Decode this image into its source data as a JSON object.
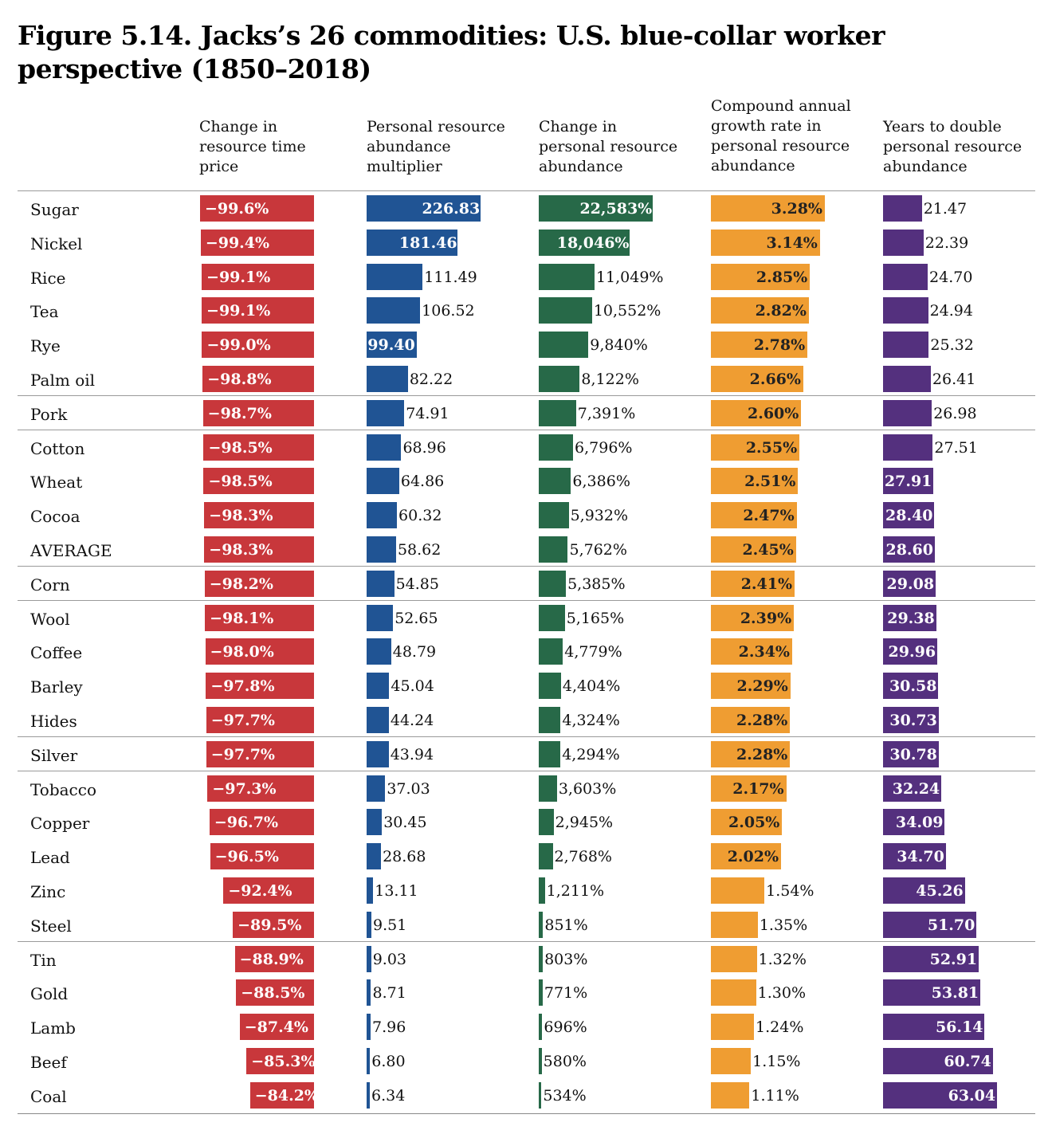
{
  "title": "Figure 5.14. Jacks’s 26 commodities: U.S. blue-collar worker perspective (1850–2018)",
  "colors": {
    "time_price": "#c8373b",
    "multiplier": "#205494",
    "abundance": "#276948",
    "cagr": "#ef9d32",
    "years": "#54307e"
  },
  "chart_data": {
    "type": "table",
    "columns": [
      {
        "key": "time_price",
        "header": "Change in resource time price"
      },
      {
        "key": "multiplier",
        "header": "Personal resource abundance multiplier"
      },
      {
        "key": "abundance",
        "header": "Change in personal resource abundance"
      },
      {
        "key": "cagr",
        "header": "Compound annual growth rate in personal resource abundance"
      },
      {
        "key": "years",
        "header": "Years to double personal resource abundance"
      }
    ],
    "rows": [
      {
        "label": "Sugar",
        "time_price": -99.6,
        "multiplier": 226.83,
        "abundance": 22583,
        "cagr": 3.28,
        "years": 21.47
      },
      {
        "label": "Nickel",
        "time_price": -99.4,
        "multiplier": 181.46,
        "abundance": 18046,
        "cagr": 3.14,
        "years": 22.39
      },
      {
        "label": "Rice",
        "time_price": -99.1,
        "multiplier": 111.49,
        "abundance": 11049,
        "cagr": 2.85,
        "years": 24.7
      },
      {
        "label": "Tea",
        "time_price": -99.1,
        "multiplier": 106.52,
        "abundance": 10552,
        "cagr": 2.82,
        "years": 24.94
      },
      {
        "label": "Rye",
        "time_price": -99.0,
        "multiplier": 99.4,
        "abundance": 9840,
        "cagr": 2.78,
        "years": 25.32
      },
      {
        "label": "Palm oil",
        "time_price": -98.8,
        "multiplier": 82.22,
        "abundance": 8122,
        "cagr": 2.66,
        "years": 26.41
      },
      {
        "label": "Pork",
        "time_price": -98.7,
        "multiplier": 74.91,
        "abundance": 7391,
        "cagr": 2.6,
        "years": 26.98
      },
      {
        "label": "Cotton",
        "time_price": -98.5,
        "multiplier": 68.96,
        "abundance": 6796,
        "cagr": 2.55,
        "years": 27.51
      },
      {
        "label": "Wheat",
        "time_price": -98.5,
        "multiplier": 64.86,
        "abundance": 6386,
        "cagr": 2.51,
        "years": 27.91
      },
      {
        "label": "Cocoa",
        "time_price": -98.3,
        "multiplier": 60.32,
        "abundance": 5932,
        "cagr": 2.47,
        "years": 28.4
      },
      {
        "label": "AVERAGE",
        "time_price": -98.3,
        "multiplier": 58.62,
        "abundance": 5762,
        "cagr": 2.45,
        "years": 28.6
      },
      {
        "label": "Corn",
        "time_price": -98.2,
        "multiplier": 54.85,
        "abundance": 5385,
        "cagr": 2.41,
        "years": 29.08
      },
      {
        "label": "Wool",
        "time_price": -98.1,
        "multiplier": 52.65,
        "abundance": 5165,
        "cagr": 2.39,
        "years": 29.38
      },
      {
        "label": "Coffee",
        "time_price": -98.0,
        "multiplier": 48.79,
        "abundance": 4779,
        "cagr": 2.34,
        "years": 29.96
      },
      {
        "label": "Barley",
        "time_price": -97.8,
        "multiplier": 45.04,
        "abundance": 4404,
        "cagr": 2.29,
        "years": 30.58
      },
      {
        "label": "Hides",
        "time_price": -97.7,
        "multiplier": 44.24,
        "abundance": 4324,
        "cagr": 2.28,
        "years": 30.73
      },
      {
        "label": "Silver",
        "time_price": -97.7,
        "multiplier": 43.94,
        "abundance": 4294,
        "cagr": 2.28,
        "years": 30.78
      },
      {
        "label": "Tobacco",
        "time_price": -97.3,
        "multiplier": 37.03,
        "abundance": 3603,
        "cagr": 2.17,
        "years": 32.24
      },
      {
        "label": "Copper",
        "time_price": -96.7,
        "multiplier": 30.45,
        "abundance": 2945,
        "cagr": 2.05,
        "years": 34.09
      },
      {
        "label": "Lead",
        "time_price": -96.5,
        "multiplier": 28.68,
        "abundance": 2768,
        "cagr": 2.02,
        "years": 34.7
      },
      {
        "label": "Zinc",
        "time_price": -92.4,
        "multiplier": 13.11,
        "abundance": 1211,
        "cagr": 1.54,
        "years": 45.26
      },
      {
        "label": "Steel",
        "time_price": -89.5,
        "multiplier": 9.51,
        "abundance": 851,
        "cagr": 1.35,
        "years": 51.7
      },
      {
        "label": "Tin",
        "time_price": -88.9,
        "multiplier": 9.03,
        "abundance": 803,
        "cagr": 1.32,
        "years": 52.91
      },
      {
        "label": "Gold",
        "time_price": -88.5,
        "multiplier": 8.71,
        "abundance": 771,
        "cagr": 1.3,
        "years": 53.81
      },
      {
        "label": "Lamb",
        "time_price": -87.4,
        "multiplier": 7.96,
        "abundance": 696,
        "cagr": 1.24,
        "years": 56.14
      },
      {
        "label": "Beef",
        "time_price": -85.3,
        "multiplier": 6.8,
        "abundance": 580,
        "cagr": 1.15,
        "years": 60.74
      },
      {
        "label": "Coal",
        "time_price": -84.2,
        "multiplier": 6.34,
        "abundance": 534,
        "cagr": 1.11,
        "years": 63.04
      }
    ]
  }
}
